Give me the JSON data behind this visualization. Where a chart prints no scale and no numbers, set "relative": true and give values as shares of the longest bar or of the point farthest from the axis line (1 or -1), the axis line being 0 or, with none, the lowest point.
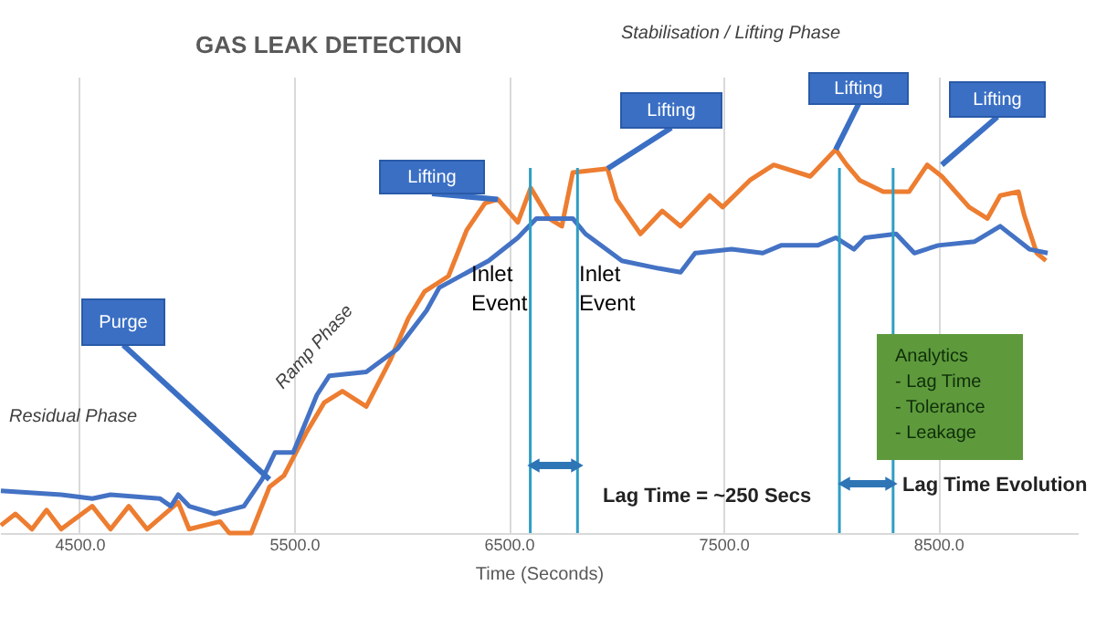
{
  "chart_data": {
    "type": "line",
    "title": "GAS LEAK DETECTION",
    "xlabel": "Time (Seconds)",
    "relative": true,
    "xlim": [
      4130,
      9150
    ],
    "xticks": [
      {
        "value": 4500,
        "label": "4500.0"
      },
      {
        "value": 5500,
        "label": "5500.0"
      },
      {
        "value": 6500,
        "label": "6500.0"
      },
      {
        "value": 7500,
        "label": "7500.0"
      },
      {
        "value": 8500,
        "label": "8500.0"
      }
    ],
    "grid": "x",
    "legend": false,
    "marker": "none",
    "line_style": "solid",
    "series": [
      {
        "color": "#ed7d31",
        "x": [
          4134,
          4202,
          4279,
          4347,
          4415,
          4560,
          4645,
          4730,
          4815,
          4960,
          5011,
          5155,
          5198,
          5300,
          5385,
          5453,
          5555,
          5640,
          5725,
          5836,
          5947,
          6032,
          6108,
          6219,
          6304,
          6389,
          6449,
          6542,
          6602,
          6687,
          6747,
          6798,
          6960,
          7002,
          7113,
          7215,
          7300,
          7436,
          7496,
          7623,
          7734,
          7904,
          8023,
          8074,
          8134,
          8244,
          8364,
          8449,
          8517,
          8644,
          8729,
          8789,
          8874,
          8900,
          8959,
          9002
        ],
        "values": [
          0.02,
          0.05,
          0.01,
          0.06,
          0.01,
          0.07,
          0.01,
          0.07,
          0.01,
          0.08,
          0.01,
          0.03,
          0.0,
          0.0,
          0.12,
          0.15,
          0.26,
          0.34,
          0.37,
          0.33,
          0.45,
          0.56,
          0.63,
          0.67,
          0.79,
          0.86,
          0.87,
          0.81,
          0.9,
          0.82,
          0.8,
          0.94,
          0.95,
          0.87,
          0.78,
          0.84,
          0.8,
          0.88,
          0.85,
          0.92,
          0.96,
          0.93,
          1.0,
          0.96,
          0.92,
          0.89,
          0.89,
          0.96,
          0.93,
          0.85,
          0.82,
          0.88,
          0.89,
          0.83,
          0.73,
          0.71
        ]
      },
      {
        "color": "#4472c4",
        "x": [
          4134,
          4415,
          4560,
          4645,
          4874,
          4926,
          4960,
          5011,
          5130,
          5266,
          5351,
          5411,
          5496,
          5606,
          5664,
          5836,
          5981,
          6117,
          6176,
          6406,
          6542,
          6628,
          6687,
          6798,
          6857,
          7027,
          7198,
          7300,
          7368,
          7538,
          7683,
          7768,
          7938,
          8023,
          8108,
          8159,
          8304,
          8389,
          8500,
          8670,
          8789,
          8925,
          9010
        ],
        "values": [
          0.11,
          0.1,
          0.09,
          0.1,
          0.09,
          0.07,
          0.1,
          0.07,
          0.05,
          0.07,
          0.14,
          0.21,
          0.21,
          0.36,
          0.41,
          0.42,
          0.48,
          0.58,
          0.64,
          0.71,
          0.77,
          0.82,
          0.82,
          0.82,
          0.78,
          0.71,
          0.69,
          0.68,
          0.73,
          0.74,
          0.73,
          0.75,
          0.75,
          0.77,
          0.74,
          0.77,
          0.78,
          0.73,
          0.75,
          0.76,
          0.8,
          0.74,
          0.73
        ]
      }
    ],
    "ref_lines": [
      {
        "axis": "x",
        "value": 6600,
        "color": "#2f9ec4"
      },
      {
        "axis": "x",
        "value": 6820,
        "color": "#2f9ec4"
      },
      {
        "axis": "x",
        "value": 8040,
        "color": "#2f9ec4"
      },
      {
        "axis": "x",
        "value": 8290,
        "color": "#2f9ec4"
      }
    ],
    "annotations": [
      "Residual Phase",
      "Ramp Phase",
      "Stabilisation / Lifting Phase",
      {
        "text": "Purge",
        "x": 5385,
        "y": 0.14
      },
      {
        "text": "Lifting",
        "x": 6449,
        "y": 0.87
      },
      {
        "text": "Lifting",
        "x": 6960,
        "y": 0.95
      },
      {
        "text": "Lifting",
        "x": 8023,
        "y": 1.0
      },
      {
        "text": "Lifting",
        "x": 8517,
        "y": 0.96
      },
      "Inlet\nEvent",
      "Inlet\nEvent",
      "Lag Time = ~250 Secs",
      "Lag Time Evolution",
      "Analytics\n- Lag Time\n- Tolerance\n- Leakage"
    ]
  }
}
